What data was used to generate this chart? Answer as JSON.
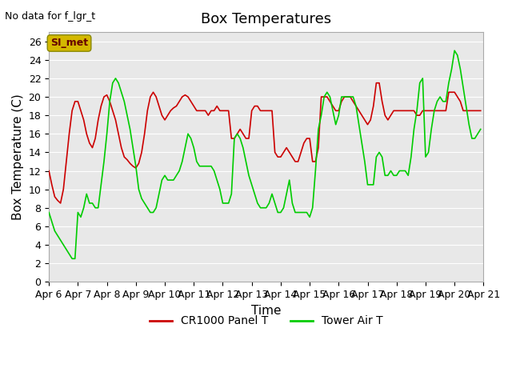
{
  "title": "Box Temperatures",
  "xlabel": "Time",
  "ylabel": "Box Temperature (C)",
  "no_data_label": "No data for f_lgr_t",
  "si_met_label": "SI_met",
  "ylim": [
    0,
    27
  ],
  "yticks": [
    0,
    2,
    4,
    6,
    8,
    10,
    12,
    14,
    16,
    18,
    20,
    22,
    24,
    26
  ],
  "background_color": "#ffffff",
  "plot_bg_color": "#e8e8e8",
  "grid_color": "#ffffff",
  "title_fontsize": 13,
  "axis_label_fontsize": 11,
  "tick_label_fontsize": 9,
  "x_labels": [
    "Apr 6",
    "Apr 7",
    "Apr 8",
    "Apr 9",
    "Apr 10",
    "Apr 11",
    "Apr 12",
    "Apr 13",
    "Apr 14",
    "Apr 15",
    "Apr 16",
    "Apr 17",
    "Apr 18",
    "Apr 19",
    "Apr 20",
    "Apr 21"
  ],
  "x_positions": [
    6,
    7,
    8,
    9,
    10,
    11,
    12,
    13,
    14,
    15,
    16,
    17,
    18,
    19,
    20,
    21
  ],
  "red_line_color": "#cc0000",
  "green_line_color": "#00cc00",
  "legend_labels": [
    "CR1000 Panel T",
    "Tower Air T"
  ],
  "red_x": [
    6.0,
    6.1,
    6.2,
    6.3,
    6.4,
    6.5,
    6.6,
    6.7,
    6.8,
    6.9,
    7.0,
    7.1,
    7.2,
    7.3,
    7.4,
    7.5,
    7.6,
    7.7,
    7.8,
    7.9,
    8.0,
    8.1,
    8.2,
    8.3,
    8.4,
    8.5,
    8.6,
    8.7,
    8.8,
    8.9,
    9.0,
    9.1,
    9.2,
    9.3,
    9.4,
    9.5,
    9.6,
    9.7,
    9.8,
    9.9,
    10.0,
    10.1,
    10.2,
    10.3,
    10.4,
    10.5,
    10.6,
    10.7,
    10.8,
    10.9,
    11.0,
    11.1,
    11.2,
    11.3,
    11.4,
    11.5,
    11.6,
    11.7,
    11.8,
    11.9,
    12.0,
    12.1,
    12.2,
    12.3,
    12.4,
    12.5,
    12.6,
    12.7,
    12.8,
    12.9,
    13.0,
    13.1,
    13.2,
    13.3,
    13.4,
    13.5,
    13.6,
    13.7,
    13.8,
    13.9,
    14.0,
    14.1,
    14.2,
    14.3,
    14.4,
    14.5,
    14.6,
    14.7,
    14.8,
    14.9,
    15.0,
    15.1,
    15.2,
    15.3,
    15.4,
    15.5,
    15.6,
    15.7,
    15.8,
    15.9,
    16.0,
    16.1,
    16.2,
    16.3,
    16.4,
    16.5,
    16.6,
    16.7,
    16.8,
    16.9,
    17.0,
    17.1,
    17.2,
    17.3,
    17.4,
    17.5,
    17.6,
    17.7,
    17.8,
    17.9,
    18.0,
    18.1,
    18.2,
    18.3,
    18.4,
    18.5,
    18.6,
    18.7,
    18.8,
    18.9,
    19.0,
    19.1,
    19.2,
    19.3,
    19.4,
    19.5,
    19.6,
    19.7,
    19.8,
    19.9,
    20.0,
    20.1,
    20.2,
    20.3,
    20.4,
    20.5,
    20.6,
    20.7,
    20.8,
    20.9
  ],
  "red_y": [
    12.0,
    10.5,
    9.2,
    8.8,
    8.5,
    10.0,
    13.0,
    16.0,
    18.5,
    19.5,
    19.5,
    18.5,
    17.5,
    16.0,
    15.0,
    14.5,
    15.5,
    17.5,
    19.0,
    20.0,
    20.2,
    19.5,
    18.5,
    17.5,
    16.0,
    14.5,
    13.5,
    13.2,
    12.8,
    12.5,
    12.3,
    12.8,
    14.0,
    16.0,
    18.5,
    20.0,
    20.5,
    20.0,
    19.0,
    18.0,
    17.5,
    18.0,
    18.5,
    18.8,
    19.0,
    19.5,
    20.0,
    20.2,
    20.0,
    19.5,
    19.0,
    18.5,
    18.5,
    18.5,
    18.5,
    18.0,
    18.5,
    18.5,
    19.0,
    18.5,
    18.5,
    18.5,
    18.5,
    15.5,
    15.5,
    16.0,
    16.5,
    16.0,
    15.5,
    15.5,
    18.5,
    19.0,
    19.0,
    18.5,
    18.5,
    18.5,
    18.5,
    18.5,
    14.0,
    13.5,
    13.5,
    14.0,
    14.5,
    14.0,
    13.5,
    13.0,
    13.0,
    14.0,
    15.0,
    15.5,
    15.5,
    13.0,
    13.0,
    14.5,
    20.0,
    20.0,
    20.0,
    19.5,
    19.0,
    18.5,
    18.5,
    19.5,
    20.0,
    20.0,
    20.0,
    19.5,
    19.0,
    18.5,
    18.0,
    17.5,
    17.0,
    17.5,
    19.0,
    21.5,
    21.5,
    19.5,
    18.0,
    17.5,
    18.0,
    18.5,
    18.5,
    18.5,
    18.5,
    18.5,
    18.5,
    18.5,
    18.5,
    18.0,
    18.0,
    18.5,
    18.5,
    18.5,
    18.5,
    18.5,
    18.5,
    18.5,
    18.5,
    18.5,
    20.5,
    20.5,
    20.5,
    20.0,
    19.5,
    18.5,
    18.5,
    18.5,
    18.5,
    18.5,
    18.5,
    18.5
  ],
  "green_x": [
    6.0,
    6.1,
    6.2,
    6.3,
    6.4,
    6.5,
    6.6,
    6.7,
    6.8,
    6.9,
    7.0,
    7.1,
    7.2,
    7.3,
    7.4,
    7.5,
    7.6,
    7.7,
    7.8,
    7.9,
    8.0,
    8.1,
    8.2,
    8.3,
    8.4,
    8.5,
    8.6,
    8.7,
    8.8,
    8.9,
    9.0,
    9.1,
    9.2,
    9.3,
    9.4,
    9.5,
    9.6,
    9.7,
    9.8,
    9.9,
    10.0,
    10.1,
    10.2,
    10.3,
    10.4,
    10.5,
    10.6,
    10.7,
    10.8,
    10.9,
    11.0,
    11.1,
    11.2,
    11.3,
    11.4,
    11.5,
    11.6,
    11.7,
    11.8,
    11.9,
    12.0,
    12.1,
    12.2,
    12.3,
    12.4,
    12.5,
    12.6,
    12.7,
    12.8,
    12.9,
    13.0,
    13.1,
    13.2,
    13.3,
    13.4,
    13.5,
    13.6,
    13.7,
    13.8,
    13.9,
    14.0,
    14.1,
    14.2,
    14.3,
    14.4,
    14.5,
    14.6,
    14.7,
    14.8,
    14.9,
    15.0,
    15.1,
    15.2,
    15.3,
    15.4,
    15.5,
    15.6,
    15.7,
    15.8,
    15.9,
    16.0,
    16.1,
    16.2,
    16.3,
    16.4,
    16.5,
    16.6,
    16.7,
    16.8,
    16.9,
    17.0,
    17.1,
    17.2,
    17.3,
    17.4,
    17.5,
    17.6,
    17.7,
    17.8,
    17.9,
    18.0,
    18.1,
    18.2,
    18.3,
    18.4,
    18.5,
    18.6,
    18.7,
    18.8,
    18.9,
    19.0,
    19.1,
    19.2,
    19.3,
    19.4,
    19.5,
    19.6,
    19.7,
    19.8,
    19.9,
    20.0,
    20.1,
    20.2,
    20.3,
    20.4,
    20.5,
    20.6,
    20.7,
    20.8,
    20.9
  ],
  "green_y": [
    7.5,
    6.5,
    5.5,
    5.0,
    4.5,
    4.0,
    3.5,
    3.0,
    2.5,
    2.5,
    7.5,
    7.0,
    8.0,
    9.5,
    8.5,
    8.5,
    8.0,
    8.0,
    10.5,
    13.0,
    16.0,
    19.5,
    21.5,
    22.0,
    21.5,
    20.5,
    19.5,
    18.0,
    16.5,
    14.5,
    12.5,
    10.0,
    9.0,
    8.5,
    8.0,
    7.5,
    7.5,
    8.0,
    9.5,
    11.0,
    11.5,
    11.0,
    11.0,
    11.0,
    11.5,
    12.0,
    13.0,
    14.5,
    16.0,
    15.5,
    14.5,
    13.0,
    12.5,
    12.5,
    12.5,
    12.5,
    12.5,
    12.0,
    11.0,
    10.0,
    8.5,
    8.5,
    8.5,
    9.5,
    15.5,
    16.0,
    15.5,
    14.5,
    13.0,
    11.5,
    10.5,
    9.5,
    8.5,
    8.0,
    8.0,
    8.0,
    8.5,
    9.5,
    8.5,
    7.5,
    7.5,
    8.0,
    9.5,
    11.0,
    8.5,
    7.5,
    7.5,
    7.5,
    7.5,
    7.5,
    7.0,
    8.0,
    12.0,
    16.5,
    18.0,
    20.0,
    20.5,
    20.0,
    18.5,
    17.0,
    18.0,
    20.0,
    20.0,
    20.0,
    20.0,
    20.0,
    19.0,
    17.0,
    15.0,
    13.0,
    10.5,
    10.5,
    10.5,
    13.5,
    14.0,
    13.5,
    11.5,
    11.5,
    12.0,
    11.5,
    11.5,
    12.0,
    12.0,
    12.0,
    11.5,
    13.5,
    16.5,
    18.5,
    21.5,
    22.0,
    13.5,
    14.0,
    16.5,
    18.5,
    19.5,
    20.0,
    19.5,
    19.5,
    21.5,
    23.0,
    25.0,
    24.5,
    23.0,
    21.0,
    19.0,
    17.0,
    15.5,
    15.5,
    16.0,
    16.5
  ]
}
